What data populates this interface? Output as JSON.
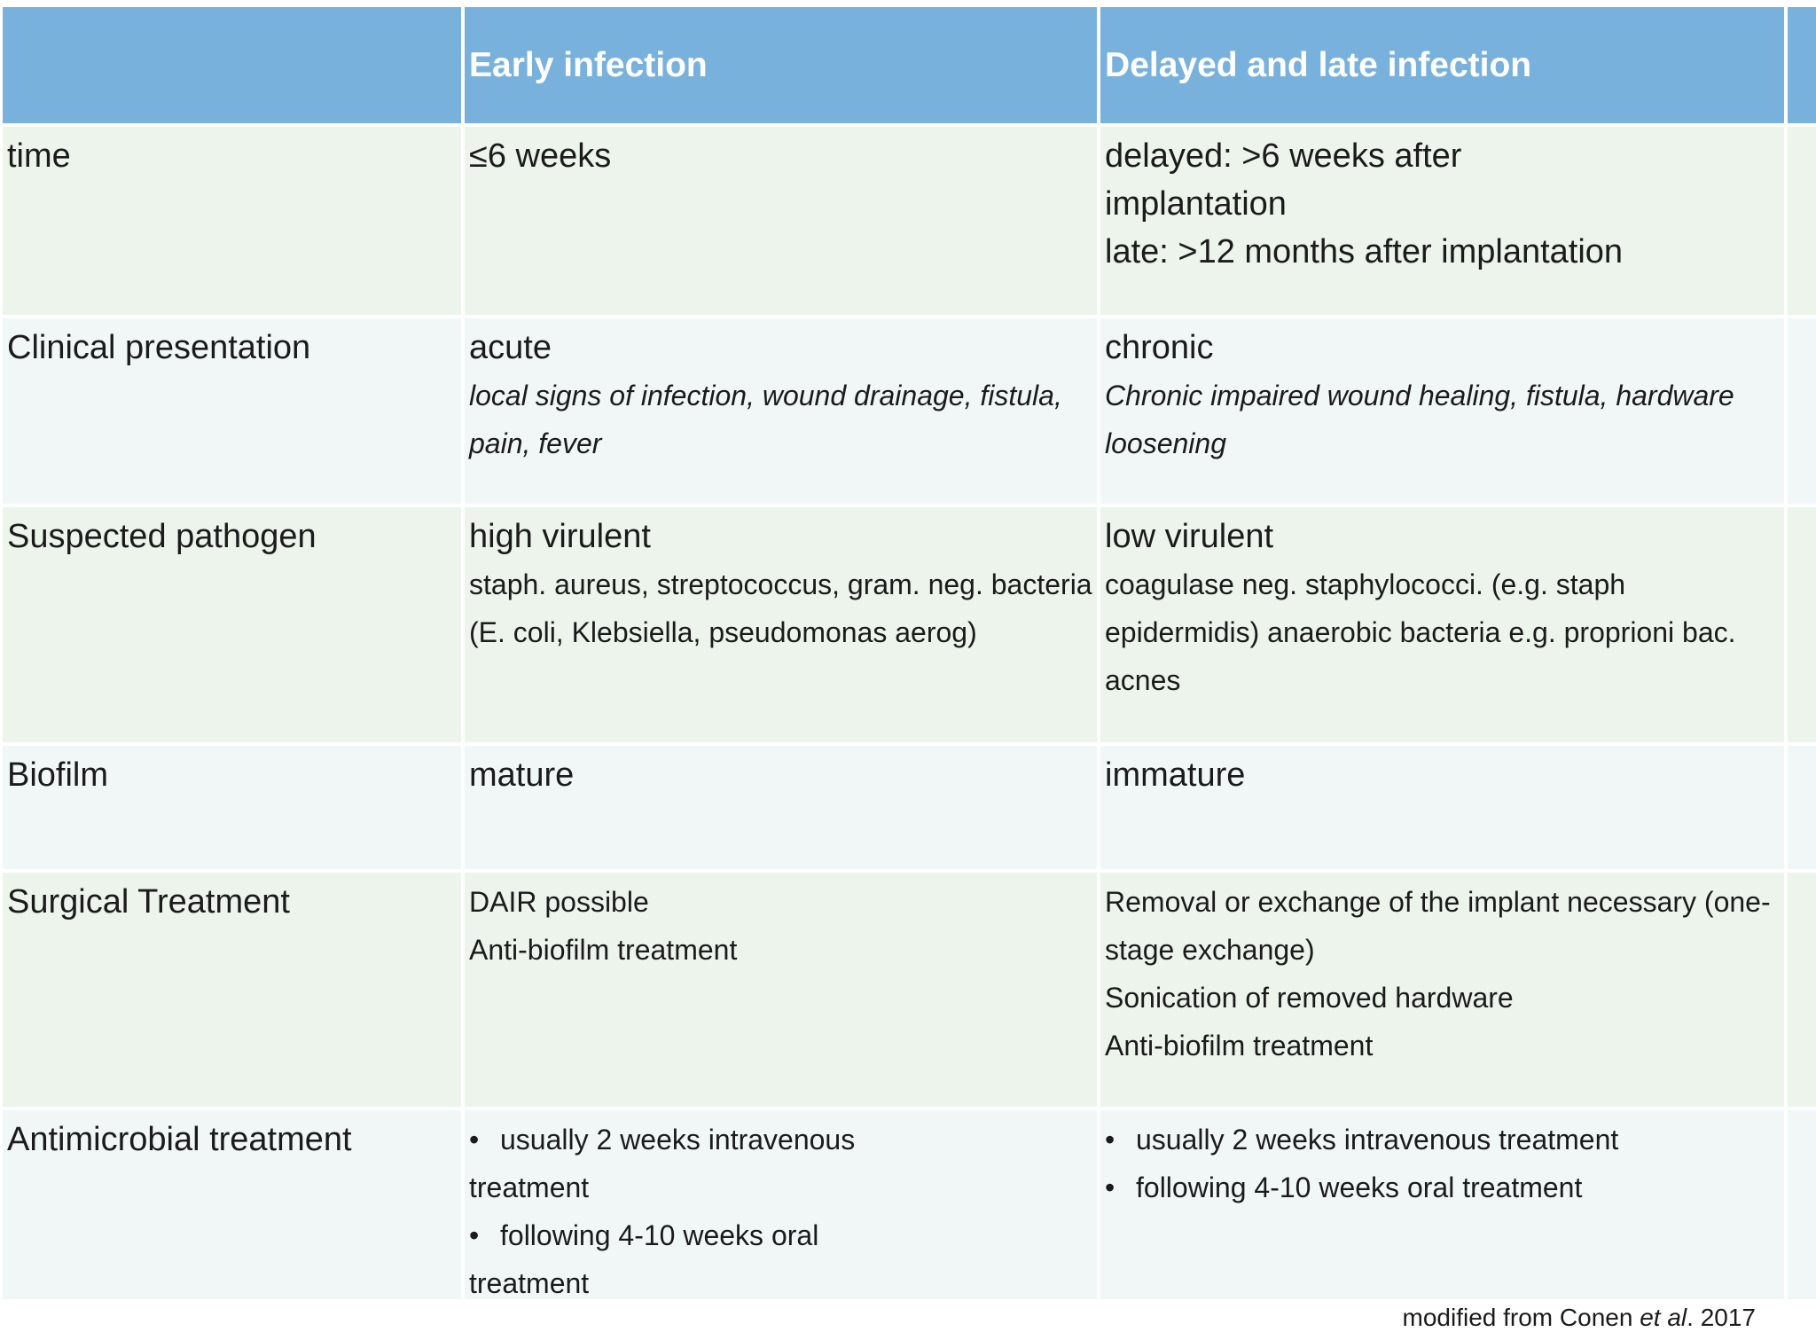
{
  "header": {
    "col0": "",
    "col1": "Early infection",
    "col2": "Delayed and late infection"
  },
  "rows": [
    {
      "label": "time",
      "early": {
        "main": "≤6 weeks"
      },
      "late": {
        "lines": [
          "delayed: >6 weeks after",
          "implantation",
          "late: >12 months after implantation"
        ]
      }
    },
    {
      "label": "Clinical presentation",
      "early": {
        "main": "acute",
        "detail": "local signs of infection, wound drainage, fistula, pain, fever"
      },
      "late": {
        "main": "chronic",
        "detail": "Chronic impaired wound healing, fistula, hardware loosening"
      }
    },
    {
      "label": "Suspected pathogen",
      "early": {
        "main": "high virulent",
        "detail": "staph. aureus, streptococcus, gram. neg. bacteria (E. coli, Klebsiella, pseudomonas aerog)"
      },
      "late": {
        "main": "low virulent",
        "detail": "coagulase neg. staphylococci. (e.g. staph epidermidis) anaerobic bacteria e.g. proprioni bac. acnes"
      }
    },
    {
      "label": "Biofilm",
      "early": {
        "main": "mature"
      },
      "late": {
        "main": "immature"
      }
    },
    {
      "label": "Surgical Treatment",
      "early": {
        "items": [
          "DAIR possible",
          "Anti-biofilm treatment"
        ]
      },
      "late": {
        "items": [
          "Removal or exchange of the implant necessary (one-stage exchange)",
          "Sonication of removed hardware",
          "Anti-biofilm treatment"
        ]
      }
    },
    {
      "label": "Antimicrobial treatment",
      "bullet": "•",
      "early": {
        "bullets": [
          "usually 2 weeks intravenous",
          "treatment",
          "following 4-10 weeks oral",
          "treatment"
        ]
      },
      "late": {
        "bullets": [
          "usually 2 weeks intravenous treatment",
          "following 4-10 weeks oral treatment"
        ]
      }
    }
  ],
  "caption": {
    "prefix": "modified from Conen ",
    "italic": "et al",
    "suffix": ". 2017"
  }
}
